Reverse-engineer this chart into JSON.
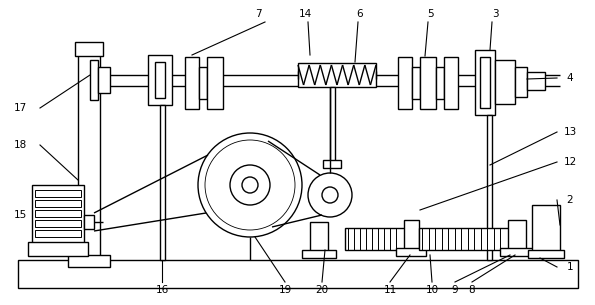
{
  "bg_color": "#ffffff",
  "line_color": "#000000",
  "lw": 1.0,
  "fig_width": 5.95,
  "fig_height": 3.05,
  "dpi": 100
}
